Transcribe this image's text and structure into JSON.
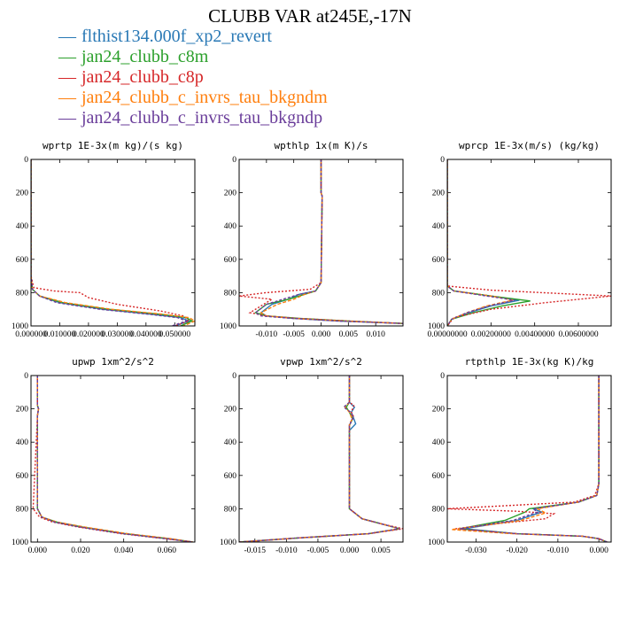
{
  "title": "CLUBB VAR at245E,-17N",
  "legend": [
    {
      "name": "flthist134.000f_xp2_revert",
      "color": "#2878b5"
    },
    {
      "name": "jan24_clubb_c8m",
      "color": "#2ca02c"
    },
    {
      "name": "jan24_clubb_c8p",
      "color": "#d62728"
    },
    {
      "name": "jan24_clubb_c_invrs_tau_bkgndm",
      "color": "#ff7f0e"
    },
    {
      "name": "jan24_clubb_c_invrs_tau_bkgndp",
      "color": "#6a3d9a"
    }
  ],
  "chart_data": [
    {
      "type": "line",
      "title": "wprtp   1E-3x(m kg)/(s kg)",
      "xlim": [
        0,
        0.057
      ],
      "ylim": [
        0,
        1000
      ],
      "xticks": [
        0,
        0.01,
        0.02,
        0.03,
        0.04,
        0.05
      ],
      "xtick_labels": [
        "0.000000",
        "0.010000",
        "0.020000",
        "0.030000",
        "0.040000",
        "0.050000"
      ],
      "yticks": [
        0,
        200,
        400,
        600,
        800,
        1000
      ],
      "ytick_labels": [
        "0",
        "200",
        "400",
        "600",
        "800",
        "1000"
      ],
      "series": [
        {
          "x": [
            0,
            0,
            0.0005,
            0.003,
            0.01,
            0.025,
            0.042,
            0.052,
            0.055,
            0.05
          ],
          "y": [
            0,
            700,
            780,
            820,
            860,
            900,
            930,
            950,
            970,
            1000
          ]
        },
        {
          "x": [
            0,
            0,
            0.0005,
            0.003,
            0.011,
            0.027,
            0.045,
            0.054,
            0.056,
            0.052
          ],
          "y": [
            0,
            700,
            780,
            820,
            860,
            900,
            930,
            950,
            970,
            1000
          ]
        },
        {
          "x": [
            0,
            0,
            0.001,
            0.008,
            0.017,
            0.02,
            0.03,
            0.045,
            0.053,
            0.055,
            0.05
          ],
          "y": [
            0,
            700,
            770,
            790,
            800,
            830,
            870,
            910,
            940,
            970,
            1000
          ]
        },
        {
          "x": [
            0,
            0,
            0.0005,
            0.003,
            0.012,
            0.028,
            0.046,
            0.055,
            0.057,
            0.053
          ],
          "y": [
            0,
            700,
            780,
            820,
            860,
            900,
            930,
            950,
            970,
            1000
          ]
        },
        {
          "x": [
            0,
            0,
            0.0005,
            0.003,
            0.009,
            0.024,
            0.041,
            0.051,
            0.054,
            0.049
          ],
          "y": [
            0,
            700,
            780,
            820,
            860,
            900,
            930,
            950,
            970,
            1000
          ]
        }
      ]
    },
    {
      "type": "line",
      "title": "wpthlp   1x(m K)/s",
      "xlim": [
        -0.015,
        0.015
      ],
      "ylim": [
        0,
        1000
      ],
      "xticks": [
        -0.01,
        -0.005,
        0,
        0.005,
        0.01
      ],
      "xtick_labels": [
        "-0.010",
        "-0.005",
        "0.000",
        "0.005",
        "0.010"
      ],
      "yticks": [
        0,
        200,
        400,
        600,
        800,
        1000
      ],
      "ytick_labels": [
        "0",
        "200",
        "400",
        "600",
        "800",
        "1000"
      ],
      "series": [
        {
          "x": [
            0,
            0,
            0.0002,
            0,
            -0.001,
            -0.004,
            -0.006,
            -0.009,
            -0.011,
            -0.01,
            -0.005,
            0.003,
            0.015
          ],
          "y": [
            0,
            200,
            220,
            740,
            790,
            810,
            840,
            870,
            920,
            940,
            955,
            970,
            985
          ]
        },
        {
          "x": [
            0,
            0,
            0.0002,
            0,
            -0.001,
            -0.003,
            -0.006,
            -0.01,
            -0.012,
            -0.01,
            -0.004,
            0.005,
            0.015
          ],
          "y": [
            0,
            200,
            220,
            740,
            790,
            810,
            840,
            870,
            920,
            940,
            955,
            970,
            985
          ]
        },
        {
          "x": [
            0,
            0,
            0.0002,
            0,
            -0.002,
            -0.01,
            -0.015,
            -0.009,
            -0.011,
            -0.013,
            -0.01,
            -0.004,
            0.005,
            0.015
          ],
          "y": [
            0,
            200,
            220,
            740,
            780,
            800,
            820,
            840,
            880,
            920,
            940,
            955,
            970,
            985
          ]
        },
        {
          "x": [
            0,
            0,
            0.0002,
            0,
            -0.001,
            -0.003,
            -0.005,
            -0.008,
            -0.011,
            -0.01,
            -0.005,
            0.004,
            0.015
          ],
          "y": [
            0,
            200,
            220,
            740,
            790,
            810,
            840,
            870,
            920,
            940,
            955,
            970,
            985
          ]
        },
        {
          "x": [
            0,
            0,
            0.0002,
            0,
            -0.001,
            -0.004,
            -0.007,
            -0.01,
            -0.012,
            -0.011,
            -0.005,
            0.003,
            0.015
          ],
          "y": [
            0,
            200,
            220,
            740,
            790,
            810,
            840,
            870,
            920,
            940,
            955,
            970,
            985
          ]
        }
      ]
    },
    {
      "type": "line",
      "title": "wprcp   1E-3x(m/s) (kg/kg)",
      "xlim": [
        0,
        0.0075
      ],
      "ylim": [
        0,
        1000
      ],
      "xticks": [
        0,
        0.002,
        0.004,
        0.006
      ],
      "xtick_labels": [
        "0.00000000",
        "0.00200000",
        "0.00400000",
        "0.00600000"
      ],
      "yticks": [
        0,
        200,
        400,
        600,
        800,
        1000
      ],
      "ytick_labels": [
        "0",
        "200",
        "400",
        "600",
        "800",
        "1000"
      ],
      "series": [
        {
          "x": [
            0,
            0,
            0.0003,
            0.002,
            0.0033,
            0.002,
            0.001,
            0.0002,
            0
          ],
          "y": [
            0,
            760,
            790,
            820,
            845,
            880,
            920,
            960,
            1000
          ]
        },
        {
          "x": [
            0,
            0,
            0.0003,
            0.002,
            0.0038,
            0.0025,
            0.0012,
            0.0002,
            0
          ],
          "y": [
            0,
            760,
            790,
            820,
            850,
            880,
            920,
            960,
            1000
          ]
        },
        {
          "x": [
            0,
            0,
            0.002,
            0.0075,
            0.0045,
            0.002,
            0.0003,
            0
          ],
          "y": [
            0,
            760,
            785,
            820,
            860,
            900,
            950,
            1000
          ]
        },
        {
          "x": [
            0,
            0,
            0.0003,
            0.002,
            0.003,
            0.0018,
            0.0009,
            0.0002,
            0
          ],
          "y": [
            0,
            760,
            790,
            820,
            845,
            880,
            920,
            960,
            1000
          ]
        },
        {
          "x": [
            0,
            0,
            0.0003,
            0.0018,
            0.0031,
            0.0019,
            0.0009,
            0.0002,
            0
          ],
          "y": [
            0,
            760,
            790,
            820,
            845,
            880,
            920,
            960,
            1000
          ]
        }
      ]
    },
    {
      "type": "line",
      "title": "upwp   1xm^2/s^2",
      "xlim": [
        -0.003,
        0.073
      ],
      "ylim": [
        0,
        1000
      ],
      "xticks": [
        0,
        0.02,
        0.04,
        0.06
      ],
      "xtick_labels": [
        "0.000",
        "0.020",
        "0.040",
        "0.060"
      ],
      "yticks": [
        0,
        200,
        400,
        600,
        800,
        1000
      ],
      "ytick_labels": [
        "0",
        "200",
        "400",
        "600",
        "800",
        "1000"
      ],
      "series": [
        {
          "x": [
            0,
            0,
            0.0005,
            0,
            0,
            0.002,
            0.008,
            0.02,
            0.04,
            0.06,
            0.072
          ],
          "y": [
            0,
            180,
            200,
            240,
            800,
            850,
            880,
            910,
            950,
            980,
            1000
          ]
        },
        {
          "x": [
            0,
            0,
            0.0005,
            0,
            0,
            0.002,
            0.009,
            0.021,
            0.041,
            0.061,
            0.072
          ],
          "y": [
            0,
            180,
            200,
            240,
            800,
            850,
            880,
            910,
            950,
            980,
            1000
          ]
        },
        {
          "x": [
            0,
            0,
            0.0005,
            0,
            -0.002,
            0.001,
            0.007,
            0.019,
            0.039,
            0.059,
            0.072
          ],
          "y": [
            0,
            180,
            200,
            240,
            800,
            850,
            880,
            910,
            950,
            980,
            1000
          ]
        },
        {
          "x": [
            0,
            0,
            0.0005,
            0,
            0,
            0.002,
            0.009,
            0.022,
            0.042,
            0.062,
            0.072
          ],
          "y": [
            0,
            180,
            200,
            240,
            800,
            850,
            880,
            910,
            950,
            980,
            1000
          ]
        },
        {
          "x": [
            0,
            0,
            0.0005,
            0,
            0,
            0.002,
            0.008,
            0.02,
            0.04,
            0.06,
            0.072
          ],
          "y": [
            0,
            180,
            200,
            240,
            800,
            850,
            880,
            910,
            950,
            980,
            1000
          ]
        }
      ]
    },
    {
      "type": "line",
      "title": "vpwp   1xm^2/s^2",
      "xlim": [
        -0.0175,
        0.0085
      ],
      "ylim": [
        0,
        1000
      ],
      "xticks": [
        -0.015,
        -0.01,
        -0.005,
        0,
        0.005
      ],
      "xtick_labels": [
        "-0.015",
        "-0.010",
        "-0.005",
        "0.000",
        "0.005"
      ],
      "yticks": [
        0,
        200,
        400,
        600,
        800,
        1000
      ],
      "ytick_labels": [
        "0",
        "200",
        "400",
        "600",
        "800",
        "1000"
      ],
      "series": [
        {
          "x": [
            0,
            0,
            0.0008,
            0.0003,
            0.001,
            0,
            0,
            0.002,
            0.005,
            0.008,
            0.003,
            -0.008,
            -0.0175
          ],
          "y": [
            0,
            160,
            190,
            220,
            290,
            330,
            800,
            860,
            890,
            920,
            950,
            975,
            1000
          ]
        },
        {
          "x": [
            0,
            0,
            -0.0005,
            0,
            0.0005,
            0,
            0,
            0.002,
            0.005,
            0.008,
            0.003,
            -0.008,
            -0.0175
          ],
          "y": [
            0,
            160,
            190,
            220,
            260,
            300,
            800,
            860,
            890,
            920,
            950,
            975,
            1000
          ]
        },
        {
          "x": [
            0,
            0,
            0.0007,
            0.0003,
            0.0007,
            0,
            0,
            0.002,
            0.005,
            0.0085,
            0.003,
            -0.008,
            -0.0175
          ],
          "y": [
            0,
            160,
            180,
            220,
            250,
            290,
            800,
            860,
            890,
            920,
            950,
            975,
            1000
          ]
        },
        {
          "x": [
            0,
            0,
            -0.0007,
            0,
            0.0004,
            0,
            0,
            0.002,
            0.005,
            0.008,
            0.003,
            -0.008,
            -0.0175
          ],
          "y": [
            0,
            160,
            190,
            220,
            260,
            300,
            800,
            860,
            890,
            920,
            950,
            975,
            1000
          ]
        },
        {
          "x": [
            0,
            0,
            -0.0009,
            0.0002,
            0.0006,
            0,
            0,
            0.002,
            0.005,
            0.008,
            0.003,
            -0.008,
            -0.0175
          ],
          "y": [
            0,
            160,
            190,
            220,
            250,
            300,
            800,
            860,
            890,
            920,
            950,
            975,
            1000
          ]
        }
      ]
    },
    {
      "type": "line",
      "title": "rtpthlp   1E-3x(kg K)/kg",
      "xlim": [
        -0.037,
        0.003
      ],
      "ylim": [
        0,
        1000
      ],
      "xticks": [
        -0.03,
        -0.02,
        -0.01,
        0
      ],
      "xtick_labels": [
        "-0.030",
        "-0.020",
        "-0.010",
        "0.000"
      ],
      "yticks": [
        0,
        200,
        400,
        600,
        800,
        1000
      ],
      "ytick_labels": [
        "0",
        "200",
        "400",
        "600",
        "800",
        "1000"
      ],
      "series": [
        {
          "x": [
            0,
            0,
            -0.0005,
            -0.005,
            -0.016,
            -0.014,
            -0.02,
            -0.033,
            -0.02,
            -0.004,
            0,
            0.002
          ],
          "y": [
            0,
            650,
            720,
            760,
            800,
            820,
            870,
            920,
            950,
            965,
            980,
            1000
          ]
        },
        {
          "x": [
            0,
            0,
            -0.0005,
            -0.005,
            -0.017,
            -0.018,
            -0.023,
            -0.034,
            -0.02,
            -0.004,
            0,
            0.002
          ],
          "y": [
            0,
            650,
            720,
            760,
            800,
            820,
            870,
            920,
            950,
            965,
            980,
            1000
          ]
        },
        {
          "x": [
            0,
            0,
            -0.001,
            -0.006,
            -0.037,
            -0.02,
            -0.011,
            -0.013,
            -0.025,
            -0.035,
            -0.02,
            -0.004,
            0,
            0.002
          ],
          "y": [
            0,
            650,
            720,
            760,
            800,
            815,
            830,
            860,
            890,
            920,
            950,
            965,
            980,
            1000
          ]
        },
        {
          "x": [
            0,
            0,
            -0.0005,
            -0.005,
            -0.015,
            -0.013,
            -0.019,
            -0.036,
            -0.021,
            -0.004,
            0,
            0.002
          ],
          "y": [
            0,
            650,
            720,
            760,
            800,
            825,
            870,
            925,
            950,
            965,
            980,
            1000
          ]
        },
        {
          "x": [
            0,
            0,
            -0.0005,
            -0.005,
            -0.016,
            -0.015,
            -0.021,
            -0.034,
            -0.02,
            -0.004,
            0,
            0.002
          ],
          "y": [
            0,
            650,
            720,
            760,
            800,
            820,
            870,
            920,
            950,
            965,
            980,
            1000
          ]
        }
      ]
    }
  ]
}
